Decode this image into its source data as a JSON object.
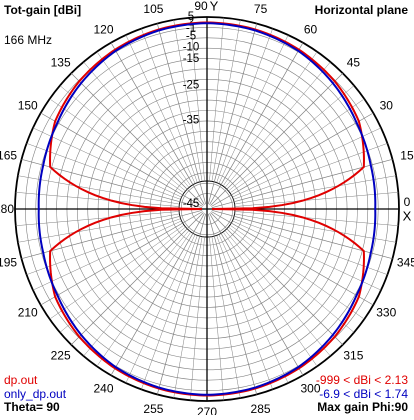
{
  "header": {
    "title": "Tot-gain [dBi]",
    "plane": "Horizontal plane",
    "frequency": "166 MHz"
  },
  "footer": {
    "theta": "Theta= 90",
    "max_gain": "Max gain Phi:90"
  },
  "colors": {
    "background": "#ffffff",
    "grid": "#808080",
    "axis": "#000000",
    "series1": "#e00000",
    "series2": "#0000c0"
  },
  "chart_data": {
    "type": "polar",
    "title": "Tot-gain [dBi]",
    "subtitle": "Horizontal plane",
    "angle_direction": "counterclockwise",
    "zero_angle_position": "right",
    "angle_ticks": [
      0,
      15,
      30,
      45,
      60,
      75,
      90,
      105,
      120,
      135,
      150,
      165,
      180,
      195,
      210,
      225,
      240,
      255,
      270,
      285,
      300,
      315,
      330,
      345
    ],
    "angle_tick_labels": [
      "0",
      "15",
      "30",
      "45",
      "60",
      "75",
      "90",
      "105",
      "120",
      "135",
      "150",
      "165",
      "180",
      "195",
      "210",
      "225",
      "240",
      "255",
      "270",
      "285",
      "300",
      "315",
      "330",
      "345"
    ],
    "axis_direction_labels": {
      "x": "X",
      "y": "Y"
    },
    "radial_ticks": [
      5,
      2,
      -1,
      -5,
      -10,
      -15,
      -25,
      -35,
      -45
    ],
    "radial_tick_labels": [
      "5",
      "2",
      "-1",
      "-5",
      "-10",
      "-15",
      "-25",
      "-35",
      "-45"
    ],
    "r_range": [
      -45,
      5
    ],
    "grid": true,
    "series": [
      {
        "name": "dp.out",
        "range_label": "-999 < dBi < 2.13",
        "color": "#e00000",
        "phi": [
          0,
          15,
          30,
          45,
          60,
          75,
          90,
          105,
          120,
          135,
          150,
          165,
          180,
          195,
          210,
          225,
          240,
          255,
          270,
          285,
          300,
          315,
          330,
          345,
          360
        ],
        "gain_dBi": [
          -45,
          -9.6,
          -3.5,
          -0.9,
          0.8,
          1.8,
          2.13,
          1.8,
          0.8,
          -0.9,
          -3.5,
          -9.6,
          -45,
          -9.6,
          -3.5,
          -0.9,
          0.8,
          1.8,
          2.13,
          1.8,
          0.8,
          -0.9,
          -3.5,
          -9.6,
          -45
        ]
      },
      {
        "name": "only_dp.out",
        "range_label": "-6.9 < dBi < 1.74",
        "color": "#0000c0",
        "phi": [
          0,
          15,
          30,
          45,
          60,
          75,
          90,
          105,
          120,
          135,
          150,
          165,
          180,
          195,
          210,
          225,
          240,
          255,
          270,
          285,
          300,
          315,
          330,
          345,
          360
        ],
        "gain_dBi": [
          -6.9,
          -6.3,
          -4.8,
          -2.2,
          0.1,
          1.3,
          1.74,
          1.3,
          0.1,
          -2.2,
          -4.8,
          -6.3,
          -6.9,
          -6.3,
          -4.8,
          -2.2,
          0.1,
          1.3,
          1.74,
          1.3,
          0.1,
          -2.2,
          -4.8,
          -6.3,
          -6.9
        ]
      }
    ]
  }
}
